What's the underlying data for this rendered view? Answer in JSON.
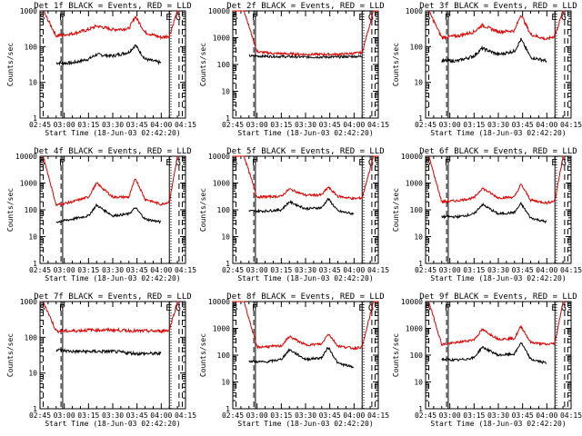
{
  "figure": {
    "background": "#ffffff",
    "colors": {
      "events": "#000000",
      "lld": "#dd0000",
      "axes": "#000000"
    }
  },
  "chart_data": [
    {
      "type": "line",
      "title": "Det 1f BLACK = Events, RED = LLD",
      "ylabel": "Counts/sec",
      "xlabel": "Start Time (18-Jun-03 02:42:20)",
      "yscale": "log",
      "ylim": [
        1,
        1000
      ],
      "xlim": [
        "02:45",
        "04:15"
      ],
      "x_ticks": [
        "02:45",
        "03:00",
        "03:15",
        "03:30",
        "03:45",
        "04:00",
        "04:15"
      ],
      "y_ticks": [
        "1",
        "10",
        "100",
        "1000"
      ],
      "markers": {
        "S": "02:47",
        "F": "02:59",
        "E": "04:05",
        "G": "04:11"
      },
      "series": [
        {
          "name": "Events",
          "color": "#000000",
          "x": [
            "02:55",
            "03:05",
            "03:15",
            "03:20",
            "03:30",
            "03:40",
            "03:44",
            "03:50",
            "04:00"
          ],
          "values": [
            35,
            35,
            45,
            60,
            55,
            70,
            110,
            45,
            35
          ]
        },
        {
          "name": "LLD",
          "color": "#dd0000",
          "x": [
            "02:47",
            "02:55",
            "03:05",
            "03:15",
            "03:20",
            "03:30",
            "03:40",
            "03:44",
            "03:50",
            "04:00",
            "04:05",
            "04:10",
            "04:11"
          ],
          "values": [
            1000,
            200,
            230,
            300,
            380,
            300,
            320,
            700,
            250,
            180,
            200,
            1000,
            1000
          ]
        }
      ]
    },
    {
      "type": "line",
      "title": "Det 2f BLACK = Events, RED = LLD",
      "ylabel": "Counts/sec",
      "xlabel": "Start Time (18-Jun-03 02:42:20)",
      "yscale": "log",
      "ylim": [
        1,
        10000
      ],
      "xlim": [
        "02:45",
        "04:15"
      ],
      "x_ticks": [
        "02:45",
        "03:00",
        "03:15",
        "03:30",
        "03:45",
        "04:00",
        "04:15"
      ],
      "y_ticks": [
        "1",
        "10",
        "100",
        "1000",
        "10000"
      ],
      "markers": {
        "S": "02:47",
        "F": "02:59",
        "E": "04:05",
        "G": "04:11"
      },
      "series": [
        {
          "name": "Events",
          "color": "#000000",
          "x": [
            "02:55",
            "03:10",
            "03:30",
            "03:50",
            "04:00",
            "04:05"
          ],
          "values": [
            210,
            200,
            190,
            190,
            200,
            200
          ]
        },
        {
          "name": "LLD",
          "color": "#dd0000",
          "x": [
            "02:45",
            "02:52",
            "03:00",
            "03:10",
            "03:30",
            "03:50",
            "04:00",
            "04:05",
            "04:12",
            "04:15"
          ],
          "values": [
            10000,
            10000,
            300,
            260,
            240,
            240,
            260,
            280,
            10000,
            10000
          ]
        }
      ]
    },
    {
      "type": "line",
      "title": "Det 3f BLACK = Events, RED = LLD",
      "ylabel": "Counts/sec",
      "xlabel": "Start Time (18-Jun-03 02:42:20)",
      "yscale": "log",
      "ylim": [
        1,
        1000
      ],
      "xlim": [
        "02:45",
        "04:15"
      ],
      "x_ticks": [
        "02:45",
        "03:00",
        "03:15",
        "03:30",
        "03:45",
        "04:00",
        "04:15"
      ],
      "y_ticks": [
        "1",
        "10",
        "100",
        "1000"
      ],
      "markers": {
        "S": "02:47",
        "F": "02:59",
        "E": "04:05",
        "G": "04:11"
      },
      "series": [
        {
          "name": "Events",
          "color": "#000000",
          "x": [
            "02:55",
            "03:05",
            "03:15",
            "03:20",
            "03:30",
            "03:40",
            "03:44",
            "03:50",
            "04:00"
          ],
          "values": [
            40,
            40,
            55,
            90,
            60,
            75,
            160,
            50,
            40
          ]
        },
        {
          "name": "LLD",
          "color": "#dd0000",
          "x": [
            "02:47",
            "02:55",
            "03:05",
            "03:15",
            "03:20",
            "03:30",
            "03:40",
            "03:44",
            "03:50",
            "04:00",
            "04:05",
            "04:10",
            "04:11"
          ],
          "values": [
            1000,
            180,
            200,
            260,
            400,
            260,
            280,
            800,
            220,
            160,
            200,
            1000,
            1000
          ]
        }
      ]
    },
    {
      "type": "line",
      "title": "Det 4f BLACK = Events, RED = LLD",
      "ylabel": "Counts/sec",
      "xlabel": "Start Time (18-Jun-03 02:42:20)",
      "yscale": "log",
      "ylim": [
        1,
        10000
      ],
      "xlim": [
        "02:45",
        "04:15"
      ],
      "x_ticks": [
        "02:45",
        "03:00",
        "03:15",
        "03:30",
        "03:45",
        "04:00",
        "04:15"
      ],
      "y_ticks": [
        "1",
        "10",
        "100",
        "1000",
        "10000"
      ],
      "markers": {
        "S": "02:47",
        "F": "02:59",
        "E": "04:05",
        "G": "04:11"
      },
      "series": [
        {
          "name": "Events",
          "color": "#000000",
          "x": [
            "02:55",
            "03:05",
            "03:15",
            "03:20",
            "03:30",
            "03:40",
            "03:44",
            "03:50",
            "04:00"
          ],
          "values": [
            35,
            45,
            60,
            150,
            60,
            70,
            120,
            45,
            35
          ]
        },
        {
          "name": "LLD",
          "color": "#dd0000",
          "x": [
            "02:47",
            "02:55",
            "03:05",
            "03:15",
            "03:20",
            "03:30",
            "03:40",
            "03:44",
            "03:50",
            "04:00",
            "04:05",
            "04:10",
            "04:11"
          ],
          "values": [
            10000,
            150,
            200,
            300,
            1000,
            300,
            300,
            1500,
            250,
            160,
            200,
            10000,
            10000
          ]
        }
      ]
    },
    {
      "type": "line",
      "title": "Det 5f BLACK = Events, RED = LLD",
      "ylabel": "Counts/sec",
      "xlabel": "Start Time (18-Jun-03 02:42:20)",
      "yscale": "log",
      "ylim": [
        1,
        10000
      ],
      "xlim": [
        "02:45",
        "04:15"
      ],
      "x_ticks": [
        "02:45",
        "03:00",
        "03:15",
        "03:30",
        "03:45",
        "04:00",
        "04:15"
      ],
      "y_ticks": [
        "1",
        "10",
        "100",
        "1000",
        "10000"
      ],
      "markers": {
        "S": "02:47",
        "F": "02:59",
        "E": "04:05",
        "G": "04:11"
      },
      "series": [
        {
          "name": "Events",
          "color": "#000000",
          "x": [
            "02:55",
            "03:05",
            "03:15",
            "03:20",
            "03:30",
            "03:40",
            "03:44",
            "03:50",
            "04:00"
          ],
          "values": [
            90,
            90,
            100,
            200,
            110,
            120,
            260,
            90,
            70
          ]
        },
        {
          "name": "LLD",
          "color": "#dd0000",
          "x": [
            "02:45",
            "02:52",
            "03:00",
            "03:15",
            "03:20",
            "03:30",
            "03:40",
            "03:44",
            "03:50",
            "04:00",
            "04:05",
            "04:12",
            "04:15"
          ],
          "values": [
            10000,
            10000,
            300,
            320,
            600,
            350,
            360,
            700,
            320,
            260,
            280,
            10000,
            10000
          ]
        }
      ]
    },
    {
      "type": "line",
      "title": "Det 6f BLACK = Events, RED = LLD",
      "ylabel": "Counts/sec",
      "xlabel": "Start Time (18-Jun-03 02:42:20)",
      "yscale": "log",
      "ylim": [
        1,
        10000
      ],
      "xlim": [
        "02:45",
        "04:15"
      ],
      "x_ticks": [
        "02:45",
        "03:00",
        "03:15",
        "03:30",
        "03:45",
        "04:00",
        "04:15"
      ],
      "y_ticks": [
        "1",
        "10",
        "100",
        "1000",
        "10000"
      ],
      "markers": {
        "S": "02:47",
        "F": "02:59",
        "E": "04:05",
        "G": "04:11"
      },
      "series": [
        {
          "name": "Events",
          "color": "#000000",
          "x": [
            "02:55",
            "03:05",
            "03:15",
            "03:20",
            "03:30",
            "03:40",
            "03:44",
            "03:50",
            "04:00"
          ],
          "values": [
            55,
            55,
            70,
            160,
            70,
            80,
            170,
            50,
            35
          ]
        },
        {
          "name": "LLD",
          "color": "#dd0000",
          "x": [
            "02:47",
            "02:55",
            "03:05",
            "03:15",
            "03:20",
            "03:30",
            "03:40",
            "03:44",
            "03:50",
            "04:00",
            "04:05",
            "04:10",
            "04:11"
          ],
          "values": [
            10000,
            200,
            220,
            280,
            650,
            280,
            300,
            900,
            230,
            180,
            220,
            10000,
            10000
          ]
        }
      ]
    },
    {
      "type": "line",
      "title": "Det 7f BLACK = Events, RED = LLD",
      "ylabel": "Counts/sec",
      "xlabel": "Start Time (18-Jun-03 02:42:20)",
      "yscale": "log",
      "ylim": [
        1,
        1000
      ],
      "xlim": [
        "02:45",
        "04:15"
      ],
      "x_ticks": [
        "02:45",
        "03:00",
        "03:15",
        "03:30",
        "03:45",
        "04:00",
        "04:15"
      ],
      "y_ticks": [
        "1",
        "10",
        "100",
        "1000"
      ],
      "markers": {
        "S": "02:47",
        "F": "02:59",
        "E": "04:05",
        "G": "04:11"
      },
      "series": [
        {
          "name": "Events",
          "color": "#000000",
          "x": [
            "02:55",
            "03:05",
            "03:15",
            "03:30",
            "03:45",
            "04:00"
          ],
          "values": [
            45,
            40,
            40,
            40,
            35,
            35
          ]
        },
        {
          "name": "LLD",
          "color": "#dd0000",
          "x": [
            "02:47",
            "02:55",
            "03:05",
            "03:15",
            "03:30",
            "03:45",
            "04:00",
            "04:05",
            "04:10",
            "04:11"
          ],
          "values": [
            1000,
            150,
            150,
            160,
            160,
            150,
            150,
            160,
            1000,
            1000
          ]
        }
      ]
    },
    {
      "type": "line",
      "title": "Det 8f BLACK = Events, RED = LLD",
      "ylabel": "Counts/sec",
      "xlabel": "Start Time (18-Jun-03 02:42:20)",
      "yscale": "log",
      "ylim": [
        1,
        10000
      ],
      "xlim": [
        "02:45",
        "04:15"
      ],
      "x_ticks": [
        "02:45",
        "03:00",
        "03:15",
        "03:30",
        "03:45",
        "04:00",
        "04:15"
      ],
      "y_ticks": [
        "1",
        "10",
        "100",
        "1000",
        "10000"
      ],
      "markers": {
        "S": "02:47",
        "F": "02:59",
        "E": "04:05",
        "G": "04:11"
      },
      "series": [
        {
          "name": "Events",
          "color": "#000000",
          "x": [
            "02:55",
            "03:05",
            "03:15",
            "03:20",
            "03:30",
            "03:40",
            "03:44",
            "03:50",
            "04:00"
          ],
          "values": [
            60,
            55,
            70,
            160,
            70,
            80,
            200,
            50,
            35
          ]
        },
        {
          "name": "LLD",
          "color": "#dd0000",
          "x": [
            "02:45",
            "02:52",
            "03:00",
            "03:15",
            "03:20",
            "03:30",
            "03:40",
            "03:44",
            "03:50",
            "04:00",
            "04:05",
            "04:12",
            "04:15"
          ],
          "values": [
            10000,
            10000,
            200,
            220,
            500,
            240,
            260,
            650,
            220,
            180,
            200,
            10000,
            10000
          ]
        }
      ]
    },
    {
      "type": "line",
      "title": "Det 9f BLACK = Events, RED = LLD",
      "ylabel": "Counts/sec",
      "xlabel": "Start Time (18-Jun-03 02:42:20)",
      "yscale": "log",
      "ylim": [
        1,
        10000
      ],
      "xlim": [
        "02:45",
        "04:15"
      ],
      "x_ticks": [
        "02:45",
        "03:00",
        "03:15",
        "03:30",
        "03:45",
        "04:00",
        "04:15"
      ],
      "y_ticks": [
        "1",
        "10",
        "100",
        "1000",
        "10000"
      ],
      "markers": {
        "S": "02:47",
        "F": "02:59",
        "E": "04:05",
        "G": "04:11"
      },
      "series": [
        {
          "name": "Events",
          "color": "#000000",
          "x": [
            "02:55",
            "03:05",
            "03:15",
            "03:20",
            "03:30",
            "03:40",
            "03:44",
            "03:50",
            "04:00"
          ],
          "values": [
            70,
            65,
            80,
            200,
            100,
            110,
            300,
            70,
            50
          ]
        },
        {
          "name": "LLD",
          "color": "#dd0000",
          "x": [
            "02:47",
            "02:55",
            "03:05",
            "03:15",
            "03:20",
            "03:30",
            "03:40",
            "03:44",
            "03:50",
            "04:00",
            "04:05",
            "04:10",
            "04:11"
          ],
          "values": [
            10000,
            250,
            300,
            380,
            900,
            400,
            420,
            1200,
            300,
            250,
            280,
            10000,
            10000
          ]
        }
      ]
    }
  ]
}
